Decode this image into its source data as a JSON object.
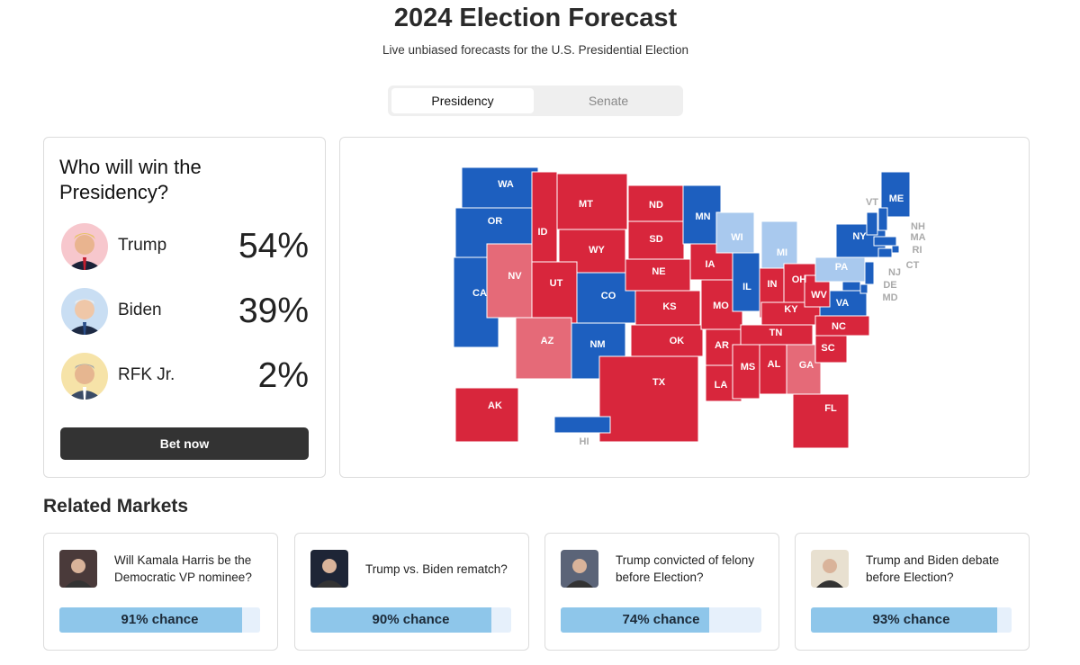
{
  "header": {
    "title": "2024 Election Forecast",
    "subtitle": "Live unbiased forecasts for the U.S. Presidential Election"
  },
  "tabs": [
    {
      "label": "Presidency",
      "active": true
    },
    {
      "label": "Senate",
      "active": false
    }
  ],
  "forecast": {
    "heading": "Who will win the Presidency?",
    "candidates": [
      {
        "name": "Trump",
        "chance": "54%"
      },
      {
        "name": "Biden",
        "chance": "39%"
      },
      {
        "name": "RFK Jr.",
        "chance": "2%"
      }
    ],
    "button": "Bet now"
  },
  "map": {
    "states": [
      {
        "label": "WA",
        "color": "#1d5fbf"
      },
      {
        "label": "OR",
        "color": "#1d5fbf"
      },
      {
        "label": "CA",
        "color": "#1d5fbf"
      },
      {
        "label": "NV",
        "color": "#e56a78"
      },
      {
        "label": "ID",
        "color": "#d8263c"
      },
      {
        "label": "MT",
        "color": "#d8263c"
      },
      {
        "label": "WY",
        "color": "#d8263c"
      },
      {
        "label": "UT",
        "color": "#d8263c"
      },
      {
        "label": "CO",
        "color": "#1d5fbf"
      },
      {
        "label": "AZ",
        "color": "#e56a78"
      },
      {
        "label": "NM",
        "color": "#1d5fbf"
      },
      {
        "label": "ND",
        "color": "#d8263c"
      },
      {
        "label": "SD",
        "color": "#d8263c"
      },
      {
        "label": "NE",
        "color": "#d8263c"
      },
      {
        "label": "KS",
        "color": "#d8263c"
      },
      {
        "label": "OK",
        "color": "#d8263c"
      },
      {
        "label": "TX",
        "color": "#d8263c"
      },
      {
        "label": "MN",
        "color": "#1d5fbf"
      },
      {
        "label": "IA",
        "color": "#d8263c"
      },
      {
        "label": "MO",
        "color": "#d8263c"
      },
      {
        "label": "AR",
        "color": "#d8263c"
      },
      {
        "label": "LA",
        "color": "#d8263c"
      },
      {
        "label": "WI",
        "color": "#a9c9ee"
      },
      {
        "label": "IL",
        "color": "#1d5fbf"
      },
      {
        "label": "MI",
        "color": "#a9c9ee"
      },
      {
        "label": "IN",
        "color": "#d8263c"
      },
      {
        "label": "OH",
        "color": "#d8263c"
      },
      {
        "label": "KY",
        "color": "#d8263c"
      },
      {
        "label": "TN",
        "color": "#d8263c"
      },
      {
        "label": "MS",
        "color": "#d8263c"
      },
      {
        "label": "AL",
        "color": "#d8263c"
      },
      {
        "label": "GA",
        "color": "#e56a78"
      },
      {
        "label": "FL",
        "color": "#d8263c"
      },
      {
        "label": "SC",
        "color": "#d8263c"
      },
      {
        "label": "NC",
        "color": "#d8263c"
      },
      {
        "label": "VA",
        "color": "#1d5fbf"
      },
      {
        "label": "WV",
        "color": "#d8263c"
      },
      {
        "label": "PA",
        "color": "#a9c9ee"
      },
      {
        "label": "NY",
        "color": "#1d5fbf"
      },
      {
        "label": "ME",
        "color": "#1d5fbf"
      },
      {
        "label": "AK",
        "color": "#d8263c"
      },
      {
        "label": "HI",
        "color": "#1d5fbf"
      },
      {
        "label": "VT",
        "color": "#1d5fbf"
      },
      {
        "label": "NH",
        "color": "#1d5fbf"
      },
      {
        "label": "MA",
        "color": "#1d5fbf"
      },
      {
        "label": "RI",
        "color": "#1d5fbf"
      },
      {
        "label": "CT",
        "color": "#1d5fbf"
      },
      {
        "label": "NJ",
        "color": "#1d5fbf"
      },
      {
        "label": "DE",
        "color": "#1d5fbf"
      },
      {
        "label": "MD",
        "color": "#1d5fbf"
      }
    ]
  },
  "related": {
    "title": "Related Markets",
    "markets": [
      {
        "question": "Will Kamala Harris be the Democratic VP nominee?",
        "chance": 91,
        "chance_label": "91% chance"
      },
      {
        "question": "Trump vs. Biden rematch?",
        "chance": 90,
        "chance_label": "90% chance"
      },
      {
        "question": "Trump convicted of felony before Election?",
        "chance": 74,
        "chance_label": "74% chance"
      },
      {
        "question": "Trump and Biden debate before Election?",
        "chance": 93,
        "chance_label": "93% chance"
      }
    ]
  }
}
